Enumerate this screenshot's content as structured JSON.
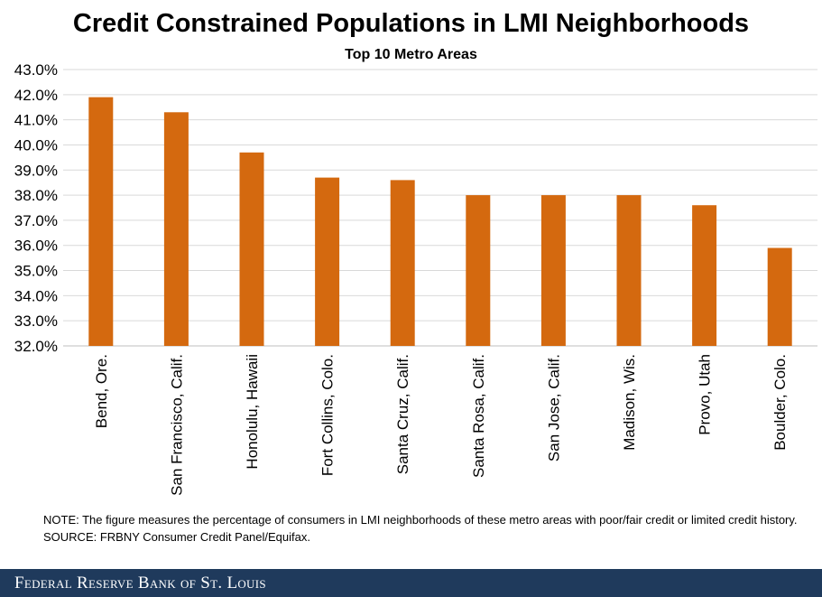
{
  "chart_data": {
    "type": "bar",
    "title": "Credit Constrained Populations in LMI Neighborhoods",
    "subtitle": "Top 10 Metro Areas",
    "xlabel": "",
    "ylabel": "",
    "categories": [
      "Bend, Ore.",
      "San Francisco, Calif.",
      "Honolulu, Hawaii",
      "Fort Collins, Colo.",
      "Santa Cruz, Calif.",
      "Santa Rosa, Calif.",
      "San Jose, Calif.",
      "Madison, Wis.",
      "Provo, Utah",
      "Boulder, Colo."
    ],
    "values": [
      41.9,
      41.3,
      39.7,
      38.7,
      38.6,
      38.0,
      38.0,
      38.0,
      37.6,
      35.9
    ],
    "ylim": [
      32.0,
      43.0
    ],
    "yticks": [
      32.0,
      33.0,
      34.0,
      35.0,
      36.0,
      37.0,
      38.0,
      39.0,
      40.0,
      41.0,
      42.0,
      43.0
    ],
    "tick_format": "percent_one_decimal",
    "grid": true,
    "bar_color": "#d4690f",
    "grid_color": "#d9d9d9"
  },
  "notes": {
    "note": "NOTE: The figure measures the percentage of consumers in LMI neighborhoods of these metro areas with poor/fair credit or limited credit history.",
    "source": "SOURCE: FRBNY Consumer Credit Panel/Equifax."
  },
  "footer": {
    "label": "Federal Reserve Bank of St. Louis"
  }
}
